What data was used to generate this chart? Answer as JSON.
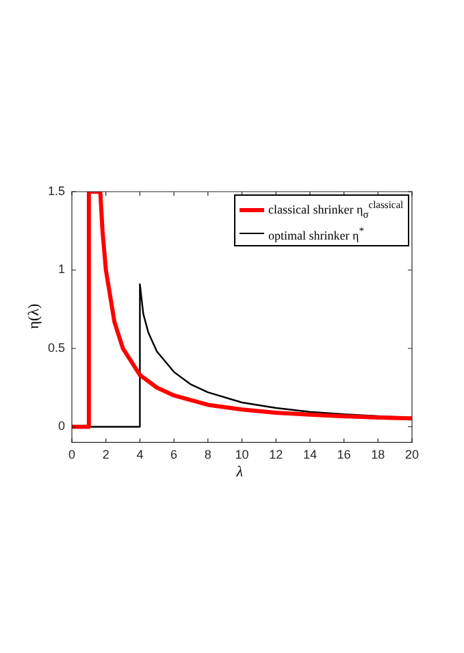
{
  "chart_data": {
    "type": "line",
    "xlabel": "λ",
    "ylabel": "η(λ)",
    "xlim": [
      0,
      20
    ],
    "xticks": [
      0,
      2,
      4,
      6,
      8,
      10,
      12,
      14,
      16,
      18,
      20
    ],
    "ylim": [
      -0.1,
      1.5
    ],
    "yticks": [
      0,
      {
        "value": 0.5,
        "label": "0.5"
      },
      1,
      {
        "value": 1.5,
        "label": "1.5"
      }
    ],
    "grid": false,
    "legend": "top right",
    "series": [
      {
        "name": "classical shrinker η$_{σ}$$^{classical}$",
        "color": "#ff0000",
        "x": [
          0,
          1,
          1,
          1.67,
          1.8,
          2,
          2.5,
          3,
          4,
          5,
          6,
          8,
          10,
          12,
          14,
          16,
          18,
          20
        ],
        "values": [
          0,
          0,
          1.5,
          1.5,
          1.25,
          1,
          0.67,
          0.5,
          0.33,
          0.25,
          0.2,
          0.14,
          0.11,
          0.09,
          0.077,
          0.067,
          0.059,
          0.053
        ]
      },
      {
        "name": "optimal shrinker η$^{*}$",
        "color": "#000000",
        "x": [
          0,
          4,
          4,
          4.2,
          4.5,
          5,
          6,
          7,
          8,
          10,
          12,
          14,
          16,
          18,
          20
        ],
        "values": [
          0,
          0,
          0.91,
          0.72,
          0.6,
          0.48,
          0.35,
          0.27,
          0.22,
          0.155,
          0.12,
          0.095,
          0.08,
          0.068,
          0.058
        ]
      }
    ]
  }
}
